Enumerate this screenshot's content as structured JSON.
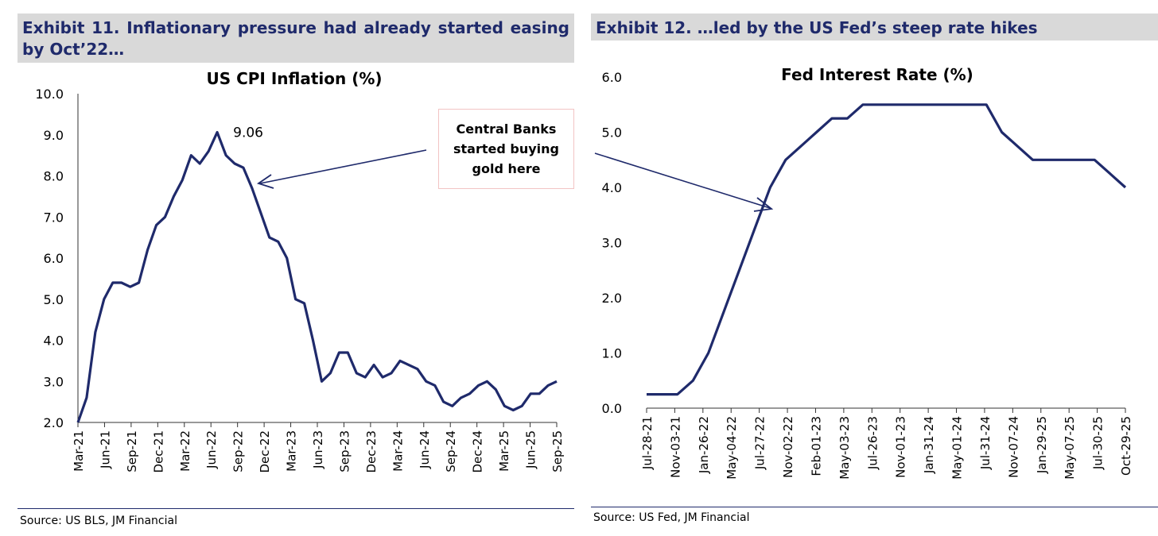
{
  "left": {
    "exhibit_title": "Exhibit 11. Inflationary pressure had already started easing by Oct’22…",
    "source": "Source: US BLS, JM Financial",
    "callout": "Central Banks started buying gold here",
    "peak_label": "9.06"
  },
  "right": {
    "exhibit_title": "Exhibit 12. …led by the US Fed’s steep rate hikes",
    "source": "Source: US Fed, JM Financial"
  },
  "colors": {
    "line": "#1f2a6b",
    "header_bg": "#d9d9d9",
    "axis": "#1a1a1a"
  },
  "chart_data": [
    {
      "type": "line",
      "title": "US CPI Inflation (%)",
      "xlabel": "",
      "ylabel": "",
      "ylim": [
        2.0,
        10.0
      ],
      "yticks": [
        "2.0",
        "3.0",
        "4.0",
        "5.0",
        "6.0",
        "7.0",
        "8.0",
        "9.0",
        "10.0"
      ],
      "x_tick_labels": [
        "Mar-21",
        "Jun-21",
        "Sep-21",
        "Dec-21",
        "Mar-22",
        "Jun-22",
        "Sep-22",
        "Dec-22",
        "Mar-23",
        "Jun-23",
        "Sep-23",
        "Dec-23",
        "Mar-24",
        "Jun-24",
        "Sep-24",
        "Dec-24",
        "Mar-25",
        "Jun-25",
        "Sep-25"
      ],
      "series": [
        {
          "name": "US CPI Inflation (%)",
          "values": [
            2.0,
            2.6,
            4.2,
            5.0,
            5.4,
            5.4,
            5.3,
            5.4,
            6.2,
            6.8,
            7.0,
            7.5,
            7.9,
            8.5,
            8.3,
            8.6,
            9.06,
            8.5,
            8.3,
            8.2,
            7.7,
            7.1,
            6.5,
            6.4,
            6.0,
            5.0,
            4.9,
            4.0,
            3.0,
            3.2,
            3.7,
            3.7,
            3.2,
            3.1,
            3.4,
            3.1,
            3.2,
            3.5,
            3.4,
            3.3,
            3.0,
            2.9,
            2.5,
            2.4,
            2.6,
            2.7,
            2.9,
            3.0,
            2.8,
            2.4,
            2.3,
            2.4,
            2.7,
            2.7,
            2.9,
            3.0
          ]
        }
      ],
      "annotations": [
        {
          "text": "9.06",
          "point_index": 16
        }
      ]
    },
    {
      "type": "line",
      "title": "Fed Interest Rate (%)",
      "xlabel": "",
      "ylabel": "",
      "ylim": [
        0.0,
        6.0
      ],
      "yticks": [
        "0.0",
        "1.0",
        "2.0",
        "3.0",
        "4.0",
        "5.0",
        "6.0"
      ],
      "x_tick_labels": [
        "Jul-28-21",
        "Nov-03-21",
        "Jan-26-22",
        "May-04-22",
        "Jul-27-22",
        "Nov-02-22",
        "Feb-01-23",
        "May-03-23",
        "Jul-26-23",
        "Nov-01-23",
        "Jan-31-24",
        "May-01-24",
        "Jul-31-24",
        "Nov-07-24",
        "Jan-29-25",
        "May-07-25",
        "Jul-30-25",
        "Oct-29-25"
      ],
      "series": [
        {
          "name": "Fed Interest Rate (%)",
          "values": [
            0.25,
            0.25,
            0.25,
            0.5,
            1.0,
            1.75,
            2.5,
            3.25,
            4.0,
            4.5,
            4.75,
            5.0,
            5.25,
            5.25,
            5.5,
            5.5,
            5.5,
            5.5,
            5.5,
            5.5,
            5.5,
            5.5,
            5.5,
            5.0,
            4.75,
            4.5,
            4.5,
            4.5,
            4.5,
            4.5,
            4.25,
            4.0
          ]
        }
      ]
    }
  ]
}
